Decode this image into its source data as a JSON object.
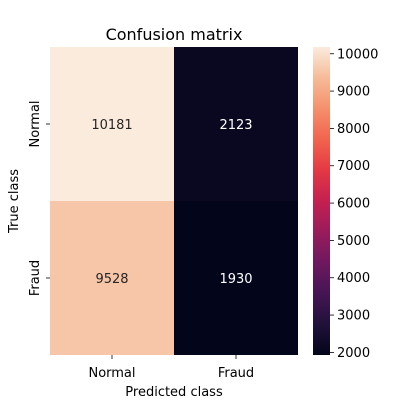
{
  "chart_data": {
    "type": "heatmap",
    "title": "Confusion matrix",
    "xlabel": "Predicted class",
    "ylabel": "True class",
    "x_categories": [
      "Normal",
      "Fraud"
    ],
    "y_categories": [
      "Normal",
      "Fraud"
    ],
    "values": [
      [
        10181,
        2123
      ],
      [
        9528,
        1930
      ]
    ],
    "annotations": [
      [
        "10181",
        "2123"
      ],
      [
        "9528",
        "1930"
      ]
    ],
    "colorbar": {
      "min": 1930,
      "max": 10181,
      "ticks": [
        2000,
        3000,
        4000,
        5000,
        6000,
        7000,
        8000,
        9000,
        10000
      ],
      "tick_labels": [
        "2000",
        "3000",
        "4000",
        "5000",
        "6000",
        "7000",
        "8000",
        "9000",
        "10000"
      ]
    },
    "colormap": "rocket"
  }
}
